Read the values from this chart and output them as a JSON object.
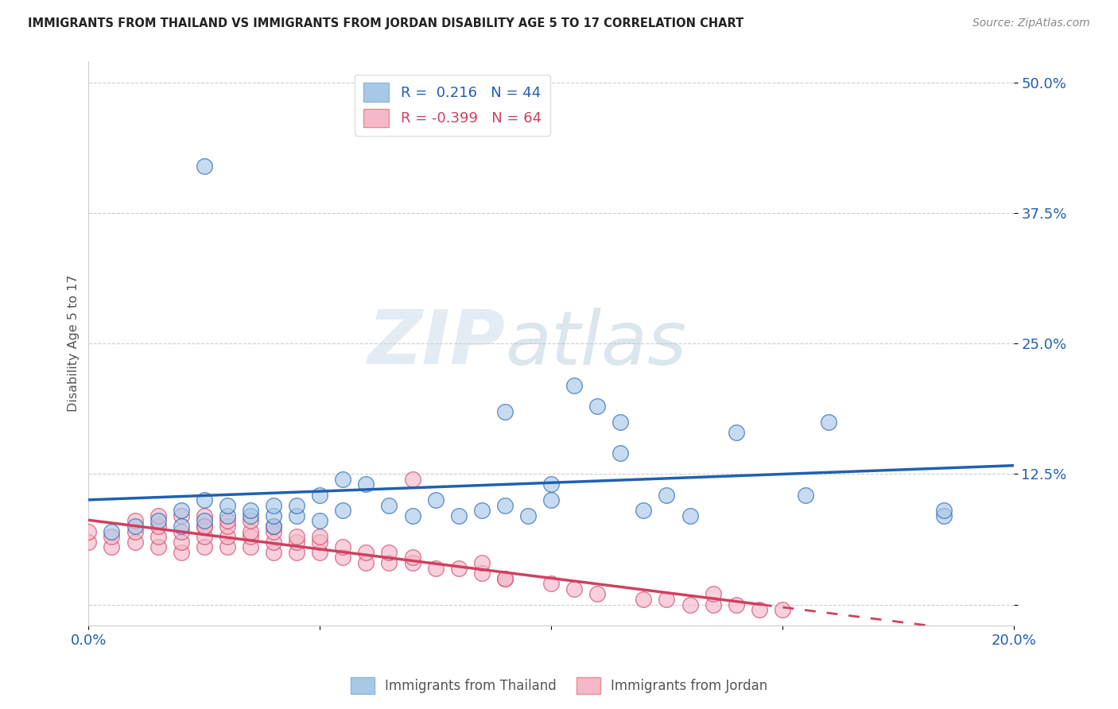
{
  "title": "IMMIGRANTS FROM THAILAND VS IMMIGRANTS FROM JORDAN DISABILITY AGE 5 TO 17 CORRELATION CHART",
  "source": "Source: ZipAtlas.com",
  "ylabel": "Disability Age 5 to 17",
  "legend_label_blue": "Immigrants from Thailand",
  "legend_label_pink": "Immigrants from Jordan",
  "r_blue": 0.216,
  "n_blue": 44,
  "r_pink": -0.399,
  "n_pink": 64,
  "watermark_zip": "ZIP",
  "watermark_atlas": "atlas",
  "xmin": 0.0,
  "xmax": 0.2,
  "ymin": -0.02,
  "ymax": 0.52,
  "yticks": [
    0.0,
    0.125,
    0.25,
    0.375,
    0.5
  ],
  "ytick_labels": [
    "",
    "12.5%",
    "25.0%",
    "37.5%",
    "50.0%"
  ],
  "xticks": [
    0.0,
    0.05,
    0.1,
    0.15,
    0.2
  ],
  "xtick_labels": [
    "0.0%",
    "",
    "",
    "",
    "20.0%"
  ],
  "color_blue": "#a8c8e8",
  "color_pink": "#f4b8c8",
  "color_line_blue": "#2060b0",
  "color_line_pink": "#d04060",
  "blue_scatter_x": [
    0.025,
    0.005,
    0.01,
    0.015,
    0.02,
    0.02,
    0.025,
    0.025,
    0.03,
    0.03,
    0.035,
    0.035,
    0.04,
    0.04,
    0.04,
    0.045,
    0.045,
    0.05,
    0.05,
    0.055,
    0.055,
    0.06,
    0.065,
    0.07,
    0.075,
    0.08,
    0.085,
    0.09,
    0.095,
    0.1,
    0.105,
    0.11,
    0.115,
    0.12,
    0.125,
    0.13,
    0.14,
    0.155,
    0.16,
    0.185,
    0.09,
    0.1,
    0.115,
    0.185
  ],
  "blue_scatter_y": [
    0.42,
    0.07,
    0.075,
    0.08,
    0.075,
    0.09,
    0.08,
    0.1,
    0.085,
    0.095,
    0.085,
    0.09,
    0.075,
    0.085,
    0.095,
    0.085,
    0.095,
    0.08,
    0.105,
    0.09,
    0.12,
    0.115,
    0.095,
    0.085,
    0.1,
    0.085,
    0.09,
    0.095,
    0.085,
    0.1,
    0.21,
    0.19,
    0.175,
    0.09,
    0.105,
    0.085,
    0.165,
    0.105,
    0.175,
    0.085,
    0.185,
    0.115,
    0.145,
    0.09
  ],
  "pink_scatter_x": [
    0.0,
    0.0,
    0.005,
    0.005,
    0.01,
    0.01,
    0.01,
    0.015,
    0.015,
    0.015,
    0.015,
    0.02,
    0.02,
    0.02,
    0.02,
    0.025,
    0.025,
    0.025,
    0.025,
    0.03,
    0.03,
    0.03,
    0.03,
    0.035,
    0.035,
    0.035,
    0.04,
    0.04,
    0.04,
    0.04,
    0.045,
    0.045,
    0.045,
    0.05,
    0.05,
    0.05,
    0.055,
    0.055,
    0.06,
    0.06,
    0.065,
    0.065,
    0.07,
    0.07,
    0.075,
    0.08,
    0.085,
    0.085,
    0.09,
    0.1,
    0.105,
    0.11,
    0.12,
    0.125,
    0.13,
    0.135,
    0.14,
    0.145,
    0.15,
    0.025,
    0.035,
    0.07,
    0.09,
    0.135
  ],
  "pink_scatter_y": [
    0.06,
    0.07,
    0.055,
    0.065,
    0.06,
    0.07,
    0.08,
    0.055,
    0.065,
    0.075,
    0.085,
    0.05,
    0.06,
    0.07,
    0.085,
    0.055,
    0.065,
    0.075,
    0.085,
    0.055,
    0.065,
    0.075,
    0.08,
    0.055,
    0.065,
    0.07,
    0.05,
    0.06,
    0.07,
    0.075,
    0.05,
    0.06,
    0.065,
    0.05,
    0.06,
    0.065,
    0.045,
    0.055,
    0.04,
    0.05,
    0.04,
    0.05,
    0.04,
    0.045,
    0.035,
    0.035,
    0.03,
    0.04,
    0.025,
    0.02,
    0.015,
    0.01,
    0.005,
    0.005,
    0.0,
    0.0,
    0.0,
    -0.005,
    -0.005,
    0.075,
    0.08,
    0.12,
    0.025,
    0.01
  ]
}
